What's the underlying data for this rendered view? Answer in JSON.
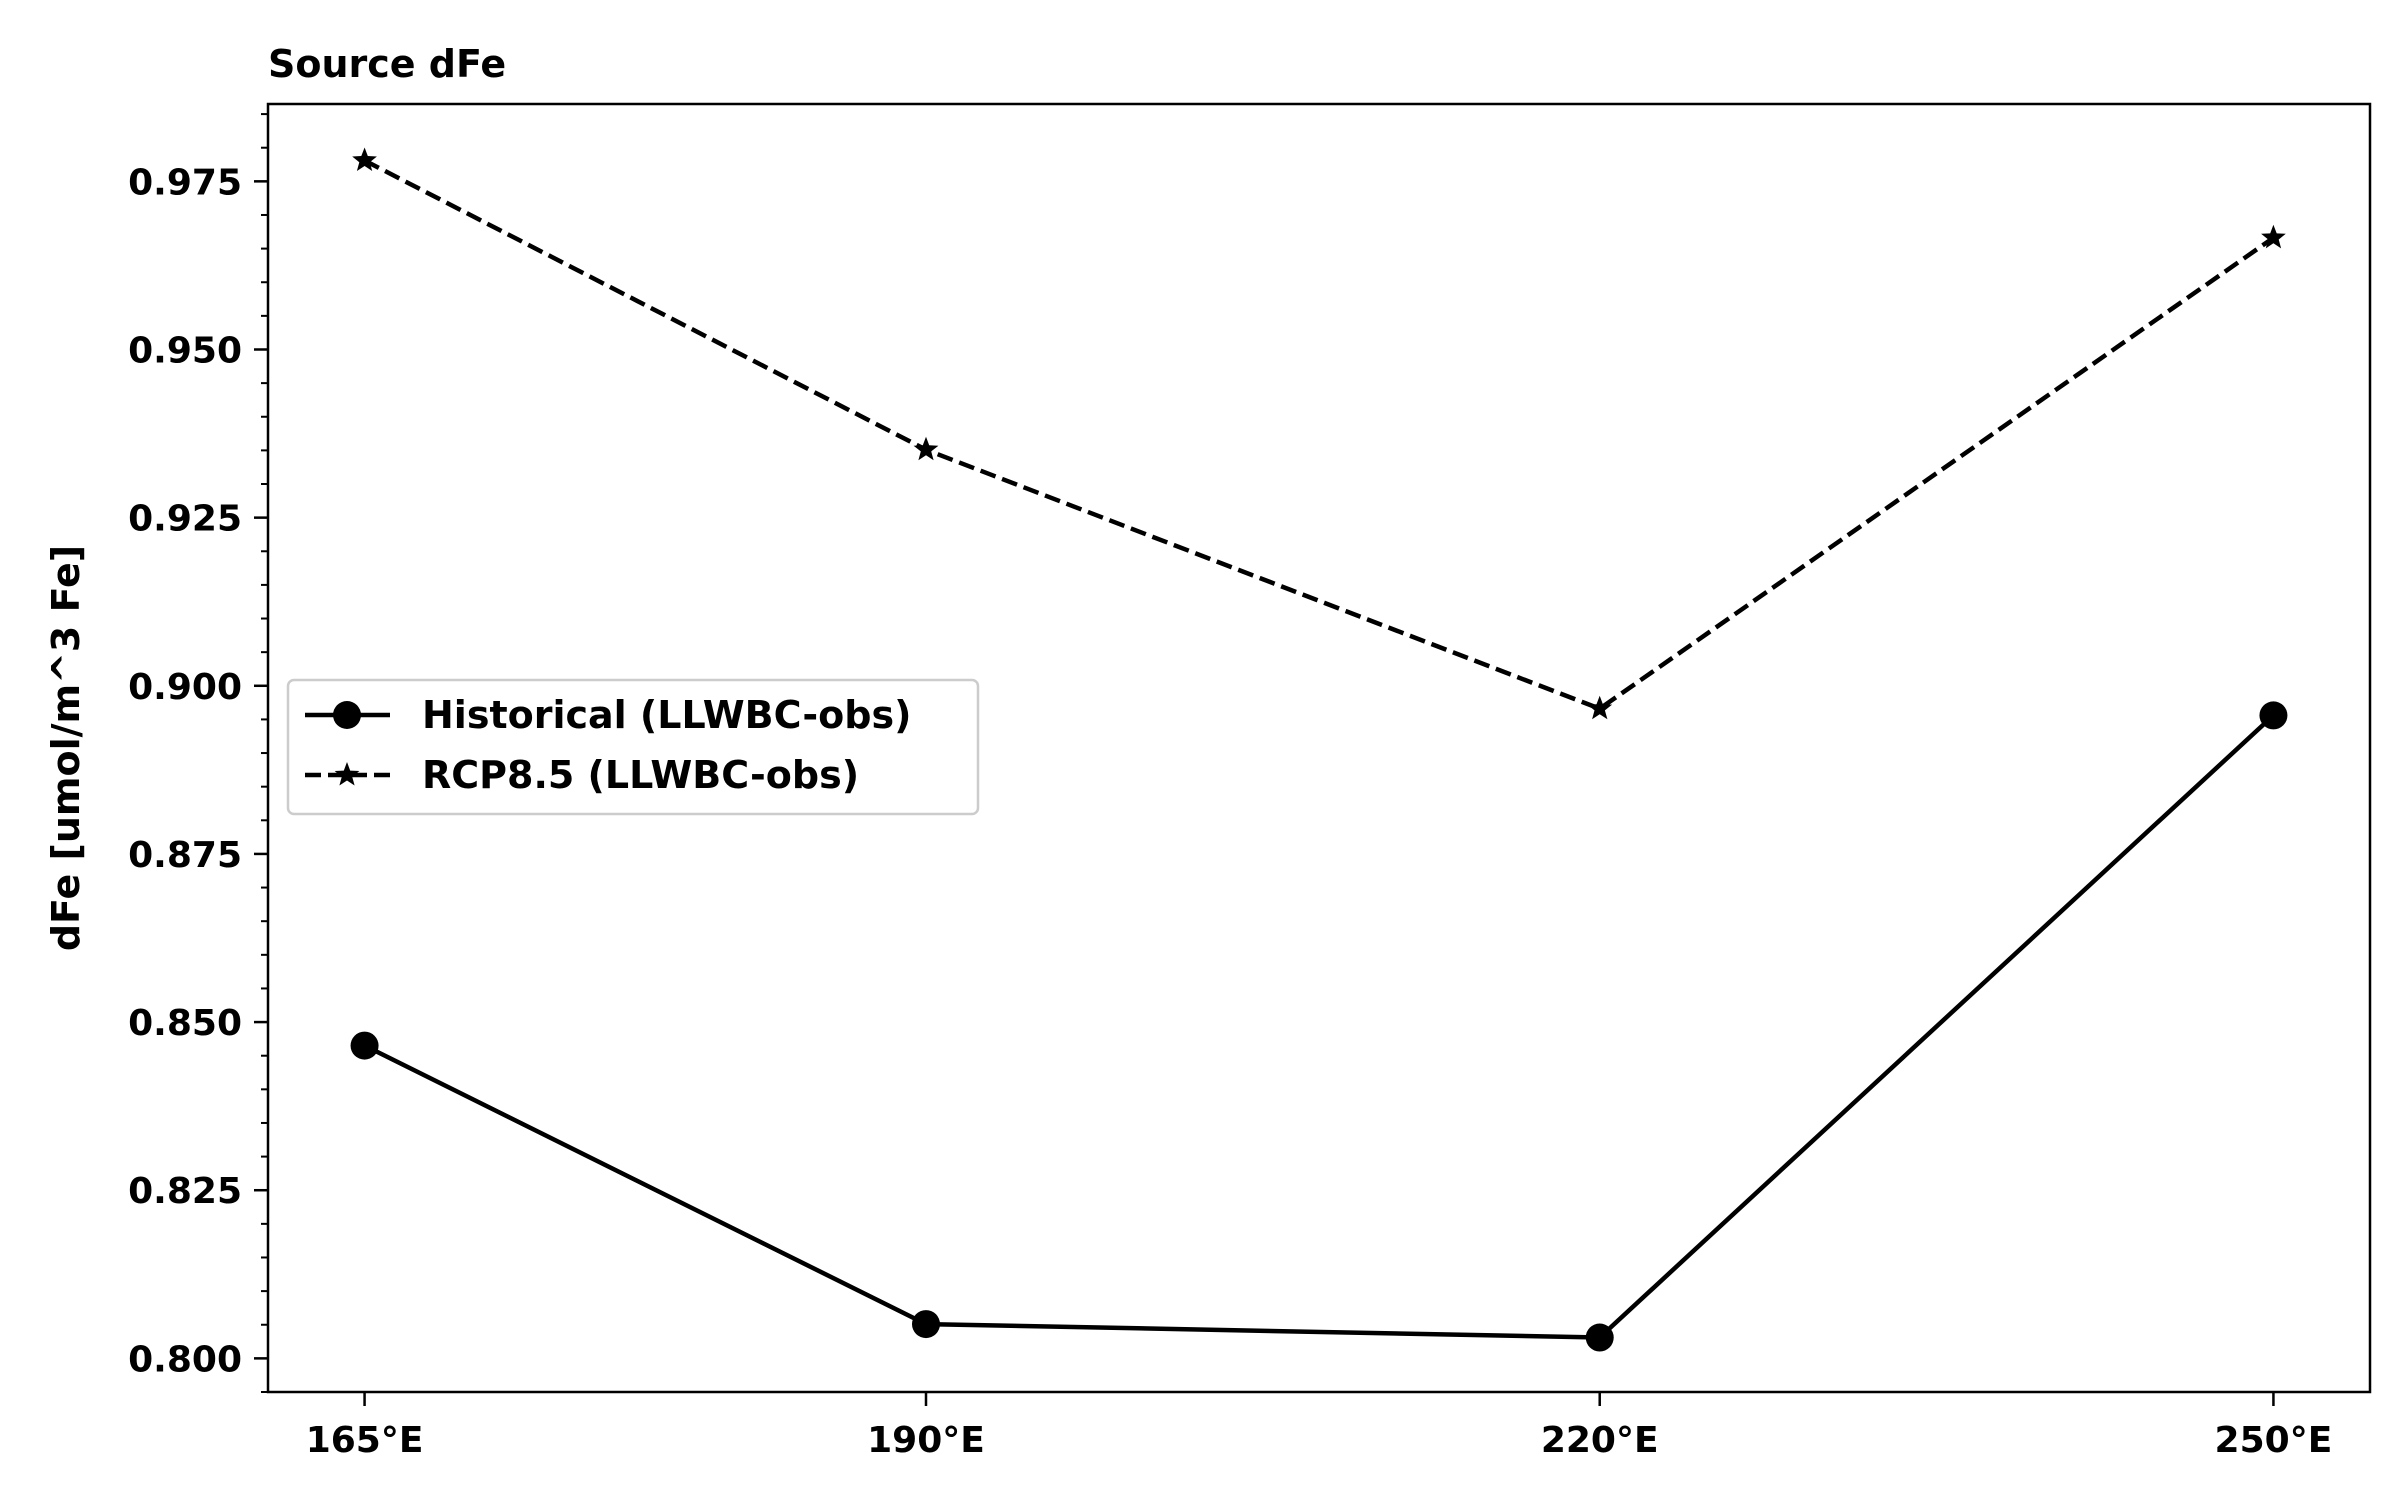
{
  "chart_data": {
    "type": "line",
    "title": "Source dFe",
    "xlabel": "",
    "ylabel": "dFe [umol/m^3 Fe]",
    "categories": [
      "165°E",
      "190°E",
      "220°E",
      "250°E"
    ],
    "x": [
      165,
      190,
      220,
      250
    ],
    "xlim": [
      160.7,
      254.3
    ],
    "ylim": [
      0.795,
      0.9865
    ],
    "yticks": [
      0.8,
      0.825,
      0.85,
      0.875,
      0.9,
      0.925,
      0.95,
      0.975
    ],
    "ytick_labels": [
      "0.800",
      "0.825",
      "0.850",
      "0.875",
      "0.900",
      "0.925",
      "0.950",
      "0.975"
    ],
    "grid": false,
    "legend_position": "center-left",
    "series": [
      {
        "name": "Historical (LLWBC-obs)",
        "values": [
          0.8465,
          0.8051,
          0.8031,
          0.8956
        ],
        "color": "#000000",
        "linestyle": "solid",
        "marker": "circle"
      },
      {
        "name": "RCP8.5 (LLWBC-obs)",
        "values": [
          0.9781,
          0.9351,
          0.8966,
          0.9666
        ],
        "color": "#000000",
        "linestyle": "dashed",
        "marker": "star"
      }
    ]
  }
}
